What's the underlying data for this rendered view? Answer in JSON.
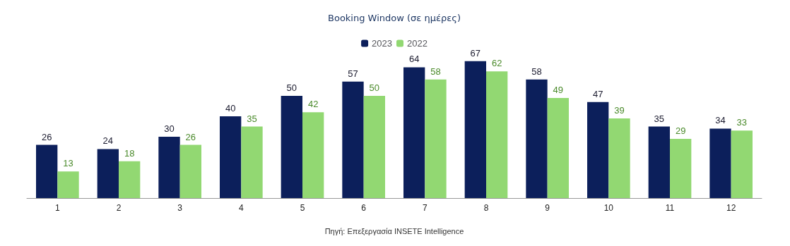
{
  "chart_data": {
    "type": "bar",
    "title": "Booking Window (σε ημέρες)",
    "categories": [
      "1",
      "2",
      "3",
      "4",
      "5",
      "6",
      "7",
      "8",
      "9",
      "10",
      "11",
      "12"
    ],
    "series": [
      {
        "name": "2023",
        "color": "#0c1f5b",
        "values": [
          26,
          24,
          30,
          40,
          50,
          57,
          64,
          67,
          58,
          47,
          35,
          34
        ]
      },
      {
        "name": "2022",
        "color": "#92d872",
        "values": [
          13,
          18,
          26,
          35,
          42,
          50,
          58,
          62,
          49,
          39,
          29,
          33
        ]
      }
    ],
    "data_labels": true,
    "legend": "top",
    "grid": false,
    "annotations": [
      "Πηγή: Επεξεργασία INSETE Intelligence"
    ]
  }
}
